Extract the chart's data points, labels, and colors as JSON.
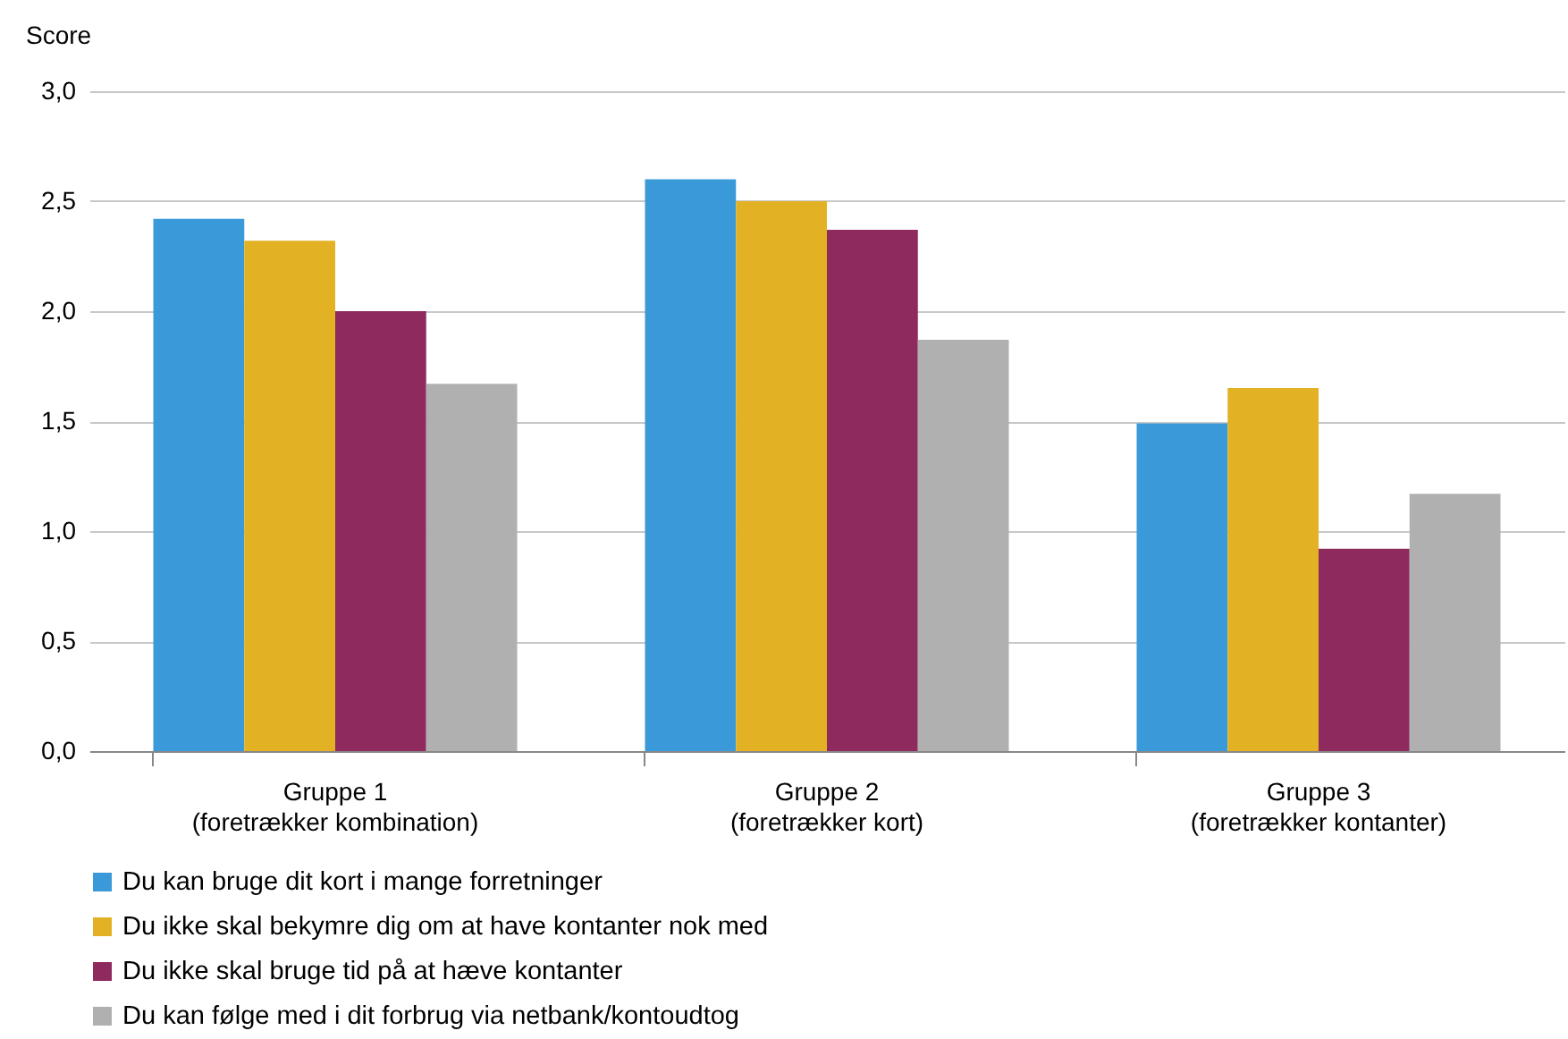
{
  "chart_data": {
    "type": "bar",
    "ylabel": "Score",
    "categories": [
      "Gruppe 1\n(foretrækker kombination)",
      "Gruppe 2\n(foretrækker kort)",
      "Gruppe 3\n(foretrækker kontanter)"
    ],
    "series": [
      {
        "name": "Du kan bruge dit kort i mange forretninger",
        "color": "#3a9ad9",
        "values": [
          2.42,
          2.6,
          1.49
        ]
      },
      {
        "name": "Du ikke skal bekymre dig om at have kontanter nok med",
        "color": "#e2b224",
        "values": [
          2.32,
          2.5,
          1.65
        ]
      },
      {
        "name": "Du ikke skal bruge tid på at hæve kontanter",
        "color": "#8e2a5e",
        "values": [
          2.0,
          2.37,
          0.92
        ]
      },
      {
        "name": "Du kan følge med i dit forbrug via netbank/kontoudtog",
        "color": "#b0b0b0",
        "values": [
          1.67,
          1.87,
          1.17
        ]
      }
    ],
    "ylim": [
      0,
      3
    ],
    "yticks": [
      {
        "value": 0,
        "label": "0,0"
      },
      {
        "value": 0.5,
        "label": "0,5"
      },
      {
        "value": 1,
        "label": "1,0"
      },
      {
        "value": 1.5,
        "label": "1,5"
      },
      {
        "value": 2,
        "label": "2,0"
      },
      {
        "value": 2.5,
        "label": "2,5"
      },
      {
        "value": 3,
        "label": "3,0"
      }
    ],
    "grid": "y",
    "legend": "bottom"
  }
}
